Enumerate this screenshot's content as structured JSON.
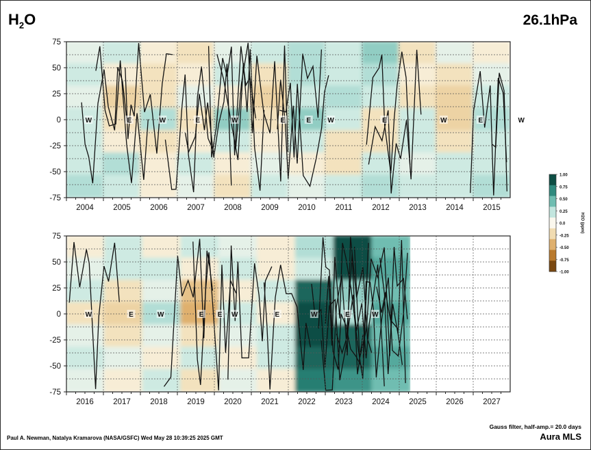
{
  "header": {
    "species_main": "H",
    "species_sub": "2",
    "species_end": "O",
    "pressure": "26.1hPa"
  },
  "footer": {
    "credit": "Paul A. Newman, Natalya Kramarova (NASA/GSFC) Wed May 28 10:39:25 2025 GMT",
    "filter": "Gauss filter, half-amp.= 20.0 days",
    "instrument": "Aura MLS"
  },
  "colorbar": {
    "label": "H2O (ppm)",
    "ticks": [
      "1.00",
      "0.75",
      "0.50",
      "0.25",
      "0.0",
      "-0.25",
      "-0.50",
      "-0.75",
      "-1.00"
    ],
    "colors": [
      "#0d4e44",
      "#2f8a7e",
      "#6fbdb1",
      "#c3e6df",
      "#fbf8ee",
      "#f1dcb2",
      "#dfb06e",
      "#b97a2e",
      "#7a4810"
    ]
  },
  "chart_data": [
    {
      "type": "heatmap",
      "panel": "top",
      "title": "",
      "xlabel": "",
      "ylabel": "",
      "x_ticks": [
        "2004",
        "2005",
        "2006",
        "2007",
        "2008",
        "2009",
        "2010",
        "2011",
        "2012",
        "2013",
        "2014",
        "2015"
      ],
      "xlim": [
        2003.5,
        2015.5
      ],
      "y_ticks": [
        "75",
        "50",
        "25",
        "0",
        "-25",
        "-50",
        "-75"
      ],
      "ylim": [
        -75,
        75
      ],
      "grid": true,
      "qbo_labels": [
        {
          "text": "W",
          "year": 2004.1
        },
        {
          "text": "E",
          "year": 2005.2
        },
        {
          "text": "W",
          "year": 2006.1
        },
        {
          "text": "E",
          "year": 2007.05
        },
        {
          "text": "W",
          "year": 2008.05
        },
        {
          "text": "E",
          "year": 2009.35
        },
        {
          "text": "E",
          "year": 2010.05
        },
        {
          "text": "W",
          "year": 2010.65
        },
        {
          "text": "E",
          "year": 2012.1
        },
        {
          "text": "W",
          "year": 2013.7
        },
        {
          "text": "E",
          "year": 2014.7
        },
        {
          "text": "W",
          "year": 2015.8
        }
      ],
      "anomaly_ppm": [
        [
          0.1,
          0.2,
          -0.1,
          -0.2,
          0.1,
          0.2,
          0.3,
          0.2,
          0.4,
          -0.2,
          0.1,
          -0.1
        ],
        [
          0.2,
          -0.1,
          -0.2,
          -0.1,
          0.2,
          -0.2,
          0.3,
          0.2,
          0.3,
          -0.1,
          -0.2,
          0.1
        ],
        [
          0.1,
          -0.3,
          -0.2,
          0.1,
          -0.1,
          -0.3,
          0.2,
          0.3,
          0.2,
          -0.2,
          -0.3,
          0.2
        ],
        [
          0.2,
          -0.2,
          0.3,
          -0.2,
          0.4,
          -0.2,
          0.4,
          0.2,
          -0.2,
          0.2,
          -0.3,
          0.3
        ],
        [
          0.2,
          -0.1,
          -0.2,
          -0.1,
          0.2,
          -0.1,
          0.2,
          -0.2,
          -0.2,
          0.2,
          -0.2,
          0.2
        ],
        [
          0.2,
          0.3,
          -0.1,
          0.2,
          -0.1,
          0.1,
          -0.1,
          -0.2,
          0.2,
          0.1,
          0.2,
          0.2
        ],
        [
          0.3,
          0.2,
          -0.1,
          0.1,
          -0.2,
          0.2,
          0.1,
          0.2,
          0.3,
          0.2,
          0.2,
          0.3
        ]
      ]
    },
    {
      "type": "heatmap",
      "panel": "bottom",
      "title": "",
      "xlabel": "",
      "ylabel": "",
      "x_ticks": [
        "2016",
        "2017",
        "2018",
        "2019",
        "2020",
        "2021",
        "2022",
        "2023",
        "2024",
        "2025",
        "2026",
        "2027"
      ],
      "xlim": [
        2015.5,
        2027.5
      ],
      "y_ticks": [
        "75",
        "50",
        "25",
        "0",
        "-25",
        "-50",
        "-75"
      ],
      "ylim": [
        -75,
        75
      ],
      "grid": true,
      "data_end_year": 2024.8,
      "qbo_labels": [
        {
          "text": "W",
          "year": 2016.1
        },
        {
          "text": "E",
          "year": 2017.25
        },
        {
          "text": "W",
          "year": 2018.05
        },
        {
          "text": "E",
          "year": 2019.15
        },
        {
          "text": "E",
          "year": 2019.65
        },
        {
          "text": "W",
          "year": 2020.05
        },
        {
          "text": "E",
          "year": 2021.2
        },
        {
          "text": "W",
          "year": 2022.2
        },
        {
          "text": "E",
          "year": 2023.1
        },
        {
          "text": "W",
          "year": 2023.85
        }
      ],
      "anomaly_ppm": [
        [
          -0.1,
          0.2,
          -0.1,
          0.2,
          0.1,
          -0.1,
          0.3,
          1.0,
          0.5
        ],
        [
          0.1,
          0.2,
          0.2,
          -0.1,
          0.2,
          -0.1,
          0.2,
          1.0,
          0.6
        ],
        [
          0.2,
          -0.2,
          0.1,
          -0.4,
          -0.1,
          0.2,
          0.9,
          0.4,
          0.5
        ],
        [
          -0.2,
          -0.3,
          0.3,
          -0.5,
          0.2,
          -0.1,
          1.0,
          0.3,
          0.6
        ],
        [
          0.1,
          -0.2,
          0.1,
          -0.2,
          0.1,
          0.2,
          1.0,
          0.9,
          0.5
        ],
        [
          0.2,
          0.1,
          -0.1,
          0.2,
          -0.1,
          0.2,
          0.9,
          0.9,
          0.6
        ],
        [
          0.1,
          -0.1,
          0.2,
          -0.2,
          0.1,
          -0.1,
          0.8,
          0.7,
          0.5
        ]
      ]
    }
  ]
}
